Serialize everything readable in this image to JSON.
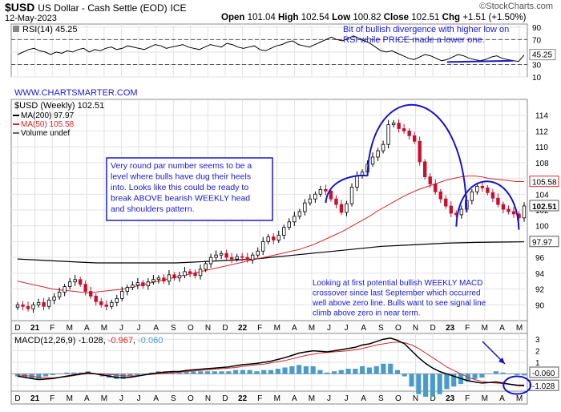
{
  "header": {
    "symbol": "$USD",
    "name": "US Dollar - Cash Settle (EOD)",
    "exchange": "ICE",
    "date": "12-May-2023",
    "open_label": "Open",
    "open": "101.04",
    "high_label": "High",
    "high": "102.54",
    "low_label": "Low",
    "low": "100.82",
    "close_label": "Close",
    "close": "102.51",
    "chg_label": "Chg",
    "chg": "+1.51 (+1.50%)",
    "brand": "©StockCharts.com"
  },
  "annotations": {
    "rsi_note_1": "Bit of bullish divergence with higher low on",
    "rsi_note_2": "RSI while PRICE made a lower one.",
    "box_note": [
      "Very round par number seems to be a",
      "level where bulls have dug their heels",
      "into. Looks like this could be ready to",
      "break ABOVE bearish WEEKLY head",
      "and shoulders pattern."
    ],
    "macd_note": [
      "Looking at first potential bullish WEEKLY MACD",
      "crossover since last September which occurred",
      "well above zero line. Bulls want to see signal line",
      "climb above zero in near term."
    ],
    "watermark": "WWW.CHARTSMARTER.COM"
  },
  "colors": {
    "candle_up": "#000000",
    "candle_down": "#c8102e",
    "ma50": "#d62728",
    "ma200": "#000000",
    "annotation": "#1a1ad0",
    "macd_hist": "#4a9cc8",
    "grid": "#e2e2e2"
  },
  "chart_data": [
    {
      "type": "line",
      "panel": "RSI",
      "legend": "RSI(14) 45.25",
      "ylim": [
        10,
        95
      ],
      "yticks": [
        10,
        30,
        50,
        70,
        90
      ],
      "reference_lines": [
        30,
        70
      ],
      "last_value_label": "45.25",
      "values": [
        46,
        50,
        54,
        56,
        52,
        50,
        46,
        50,
        48,
        52,
        50,
        54,
        56,
        50,
        54,
        52,
        56,
        58,
        54,
        56,
        60,
        58,
        56,
        54,
        58,
        62,
        60,
        56,
        58,
        60,
        62,
        58,
        56,
        54,
        58,
        62,
        60,
        58,
        64,
        62,
        58,
        56,
        58,
        60,
        54,
        52,
        56,
        60,
        62,
        66,
        68,
        62,
        60,
        58,
        62,
        66,
        70,
        74,
        70,
        68,
        72,
        76,
        72,
        68,
        64,
        58,
        52,
        50,
        52,
        48,
        44,
        40,
        38,
        42,
        46,
        44,
        40,
        36,
        38,
        42,
        46,
        44,
        40,
        38,
        36,
        38,
        42,
        44,
        40,
        38,
        36,
        35,
        45.25
      ],
      "divergence_line": {
        "from_index": 78,
        "to_index": 90,
        "values": [
          34,
          36
        ]
      }
    },
    {
      "type": "candlestick",
      "panel": "Price",
      "title": "$USD (Weekly) 102.51",
      "legend": [
        {
          "name": "MA(200)",
          "value": "97.97"
        },
        {
          "name": "MA(50)",
          "value": "105.58"
        },
        {
          "name": "Volume",
          "value": "undef"
        }
      ],
      "ylim": [
        88,
        116
      ],
      "yticks": [
        90,
        92,
        94,
        96,
        98,
        100,
        102,
        104,
        106,
        108,
        110,
        112,
        114
      ],
      "last_price_label": "102.51",
      "ma50_label": "105.58",
      "ma200_label": "97.97",
      "x_labels": [
        "D",
        "21",
        "F",
        "M",
        "A",
        "M",
        "J",
        "J",
        "A",
        "S",
        "O",
        "N",
        "D",
        "22",
        "F",
        "M",
        "A",
        "M",
        "J",
        "J",
        "A",
        "S",
        "O",
        "N",
        "D",
        "23",
        "F",
        "M",
        "A",
        "M"
      ],
      "closes": [
        90.0,
        89.8,
        89.5,
        90.0,
        90.3,
        89.8,
        90.6,
        91.0,
        91.6,
        92.3,
        92.9,
        93.2,
        92.6,
        91.7,
        91.1,
        90.4,
        90.0,
        89.8,
        90.3,
        90.8,
        91.7,
        92.2,
        92.5,
        92.8,
        92.4,
        92.9,
        93.2,
        93.4,
        93.0,
        93.8,
        93.4,
        93.7,
        94.2,
        94.0,
        93.7,
        94.5,
        95.2,
        96.0,
        96.3,
        96.5,
        96.0,
        95.8,
        96.1,
        96.0,
        95.7,
        96.3,
        96.8,
        98.0,
        98.6,
        98.2,
        98.8,
        99.8,
        100.5,
        101.2,
        101.8,
        102.9,
        103.4,
        104.0,
        104.6,
        104.4,
        103.4,
        102.7,
        101.7,
        102.8,
        104.9,
        106.3,
        106.8,
        107.8,
        108.7,
        109.5,
        110.3,
        112.8,
        113.0,
        112.3,
        112.0,
        111.4,
        110.7,
        108.1,
        106.2,
        105.3,
        104.3,
        103.4,
        102.5,
        101.6,
        101.4,
        102.1,
        103.2,
        104.3,
        105.0,
        104.8,
        104.2,
        103.5,
        102.7,
        102.1,
        101.8,
        101.5,
        101.0,
        102.51
      ],
      "ma50": [
        93.0,
        92.8,
        92.6,
        92.4,
        92.2,
        92.0,
        91.9,
        91.8,
        91.7,
        91.6,
        91.5,
        91.6,
        91.7,
        91.8,
        91.9,
        92.0,
        92.2,
        92.4,
        92.6,
        92.8,
        93.0,
        93.2,
        93.4,
        93.6,
        93.8,
        94.0,
        94.2,
        94.4,
        94.6,
        94.8,
        95.0,
        95.2,
        95.4,
        95.6,
        95.8,
        96.0,
        96.2,
        96.4,
        96.6,
        96.8,
        97.0,
        97.3,
        97.6,
        98.0,
        98.4,
        98.8,
        99.2,
        99.7,
        100.2,
        100.7,
        101.2,
        101.8,
        102.3,
        102.8,
        103.3,
        103.8,
        104.2,
        104.6,
        104.9,
        105.2,
        105.5,
        105.8,
        106.0,
        106.2,
        106.3,
        106.3,
        106.2,
        106.0,
        105.9,
        105.8,
        105.7,
        105.6,
        105.6
      ],
      "ma200": [
        95.8,
        95.7,
        95.6,
        95.5,
        95.4,
        95.3,
        95.3,
        95.3,
        95.3,
        95.3,
        95.3,
        95.4,
        95.5,
        95.6,
        95.7,
        95.8,
        96.0,
        96.2,
        96.4,
        96.6,
        96.8,
        97.0,
        97.2,
        97.4,
        97.5,
        97.6,
        97.7,
        97.8,
        97.85,
        97.9,
        97.93,
        97.95,
        97.97
      ]
    },
    {
      "type": "line",
      "panel": "MACD",
      "legend_name": "MACD(12,26,9)",
      "legend_macd": "-1.028",
      "legend_signal": "-0.967",
      "legend_hist": "-0.060",
      "ylim": [
        -1.5,
        3.5
      ],
      "yticks": [
        -1,
        0,
        1,
        2,
        3
      ],
      "hist_label": "-0.060",
      "macd_label": "-1.028",
      "macd": [
        -0.2,
        -0.3,
        -0.4,
        -0.5,
        -0.45,
        -0.4,
        -0.3,
        -0.2,
        -0.1,
        0.0,
        0.1,
        0.0,
        -0.1,
        -0.2,
        -0.3,
        -0.35,
        -0.3,
        -0.2,
        -0.1,
        0.0,
        0.1,
        0.15,
        0.2,
        0.2,
        0.3,
        0.35,
        0.4,
        0.45,
        0.5,
        0.55,
        0.6,
        0.7,
        0.8,
        0.85,
        0.9,
        1.0,
        1.1,
        1.25,
        1.4,
        1.6,
        1.8,
        1.9,
        2.0,
        1.95,
        1.9,
        2.0,
        2.1,
        2.2,
        2.3,
        2.5,
        2.6,
        2.8,
        3.0,
        3.1,
        2.9,
        2.6,
        2.0,
        1.4,
        0.9,
        0.5,
        0.2,
        0.0,
        -0.2,
        -0.4,
        -0.6,
        -0.7,
        -0.8,
        -0.75,
        -0.7,
        -0.8,
        -0.9,
        -1.0,
        -1.028
      ],
      "signal": [
        -0.1,
        -0.15,
        -0.2,
        -0.3,
        -0.35,
        -0.35,
        -0.3,
        -0.25,
        -0.15,
        -0.05,
        0.0,
        0.0,
        0.0,
        -0.05,
        -0.1,
        -0.15,
        -0.2,
        -0.15,
        -0.1,
        -0.05,
        0.0,
        0.05,
        0.1,
        0.15,
        0.2,
        0.25,
        0.3,
        0.35,
        0.4,
        0.45,
        0.5,
        0.55,
        0.65,
        0.7,
        0.8,
        0.85,
        0.95,
        1.05,
        1.15,
        1.3,
        1.45,
        1.6,
        1.7,
        1.8,
        1.85,
        1.9,
        1.95,
        2.0,
        2.1,
        2.2,
        2.35,
        2.5,
        2.6,
        2.7,
        2.75,
        2.7,
        2.5,
        2.2,
        1.8,
        1.4,
        1.0,
        0.6,
        0.3,
        0.0,
        -0.3,
        -0.5,
        -0.65,
        -0.75,
        -0.8,
        -0.85,
        -0.9,
        -0.95,
        -0.967
      ]
    }
  ]
}
